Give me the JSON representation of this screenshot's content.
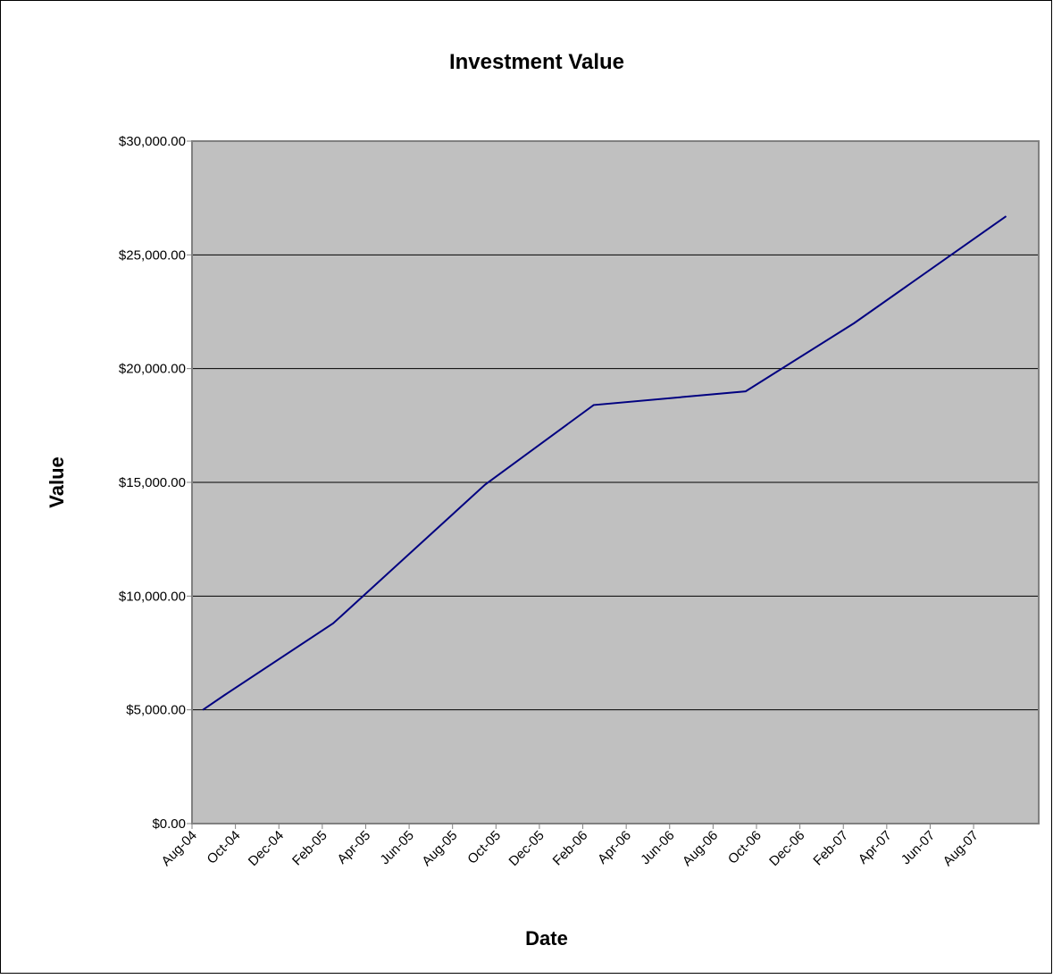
{
  "chart_data": {
    "type": "line",
    "title": "Investment Value",
    "x_label": "Date",
    "y_label": "Value",
    "x": [
      "2004-08",
      "2004-09",
      "2005-02",
      "2005-09",
      "2006-02",
      "2006-09",
      "2007-02",
      "2007-09"
    ],
    "values": [
      5000,
      5650,
      8800,
      14900,
      18400,
      19000,
      22000,
      26700
    ],
    "color": "#000080",
    "xlim": [
      "2004-08",
      "2007-10"
    ],
    "xticks": [
      {
        "value": "2004-08",
        "label": "Aug-04"
      },
      {
        "value": "2004-10",
        "label": "Oct-04"
      },
      {
        "value": "2004-12",
        "label": "Dec-04"
      },
      {
        "value": "2005-02",
        "label": "Feb-05"
      },
      {
        "value": "2005-04",
        "label": "Apr-05"
      },
      {
        "value": "2005-06",
        "label": "Jun-05"
      },
      {
        "value": "2005-08",
        "label": "Aug-05"
      },
      {
        "value": "2005-10",
        "label": "Oct-05"
      },
      {
        "value": "2005-12",
        "label": "Dec-05"
      },
      {
        "value": "2006-02",
        "label": "Feb-06"
      },
      {
        "value": "2006-04",
        "label": "Apr-06"
      },
      {
        "value": "2006-06",
        "label": "Jun-06"
      },
      {
        "value": "2006-08",
        "label": "Aug-06"
      },
      {
        "value": "2006-10",
        "label": "Oct-06"
      },
      {
        "value": "2006-12",
        "label": "Dec-06"
      },
      {
        "value": "2007-02",
        "label": "Feb-07"
      },
      {
        "value": "2007-04",
        "label": "Apr-07"
      },
      {
        "value": "2007-06",
        "label": "Jun-07"
      },
      {
        "value": "2007-08",
        "label": "Aug-07"
      }
    ],
    "ylim": [
      0,
      30000
    ],
    "yticks": [
      {
        "value": 0,
        "label": "$0.00"
      },
      {
        "value": 5000,
        "label": "$5,000.00"
      },
      {
        "value": 10000,
        "label": "$10,000.00"
      },
      {
        "value": 15000,
        "label": "$15,000.00"
      },
      {
        "value": 20000,
        "label": "$20,000.00"
      },
      {
        "value": 25000,
        "label": "$25,000.00"
      },
      {
        "value": 30000,
        "label": "$30,000.00"
      }
    ],
    "grid": true
  }
}
